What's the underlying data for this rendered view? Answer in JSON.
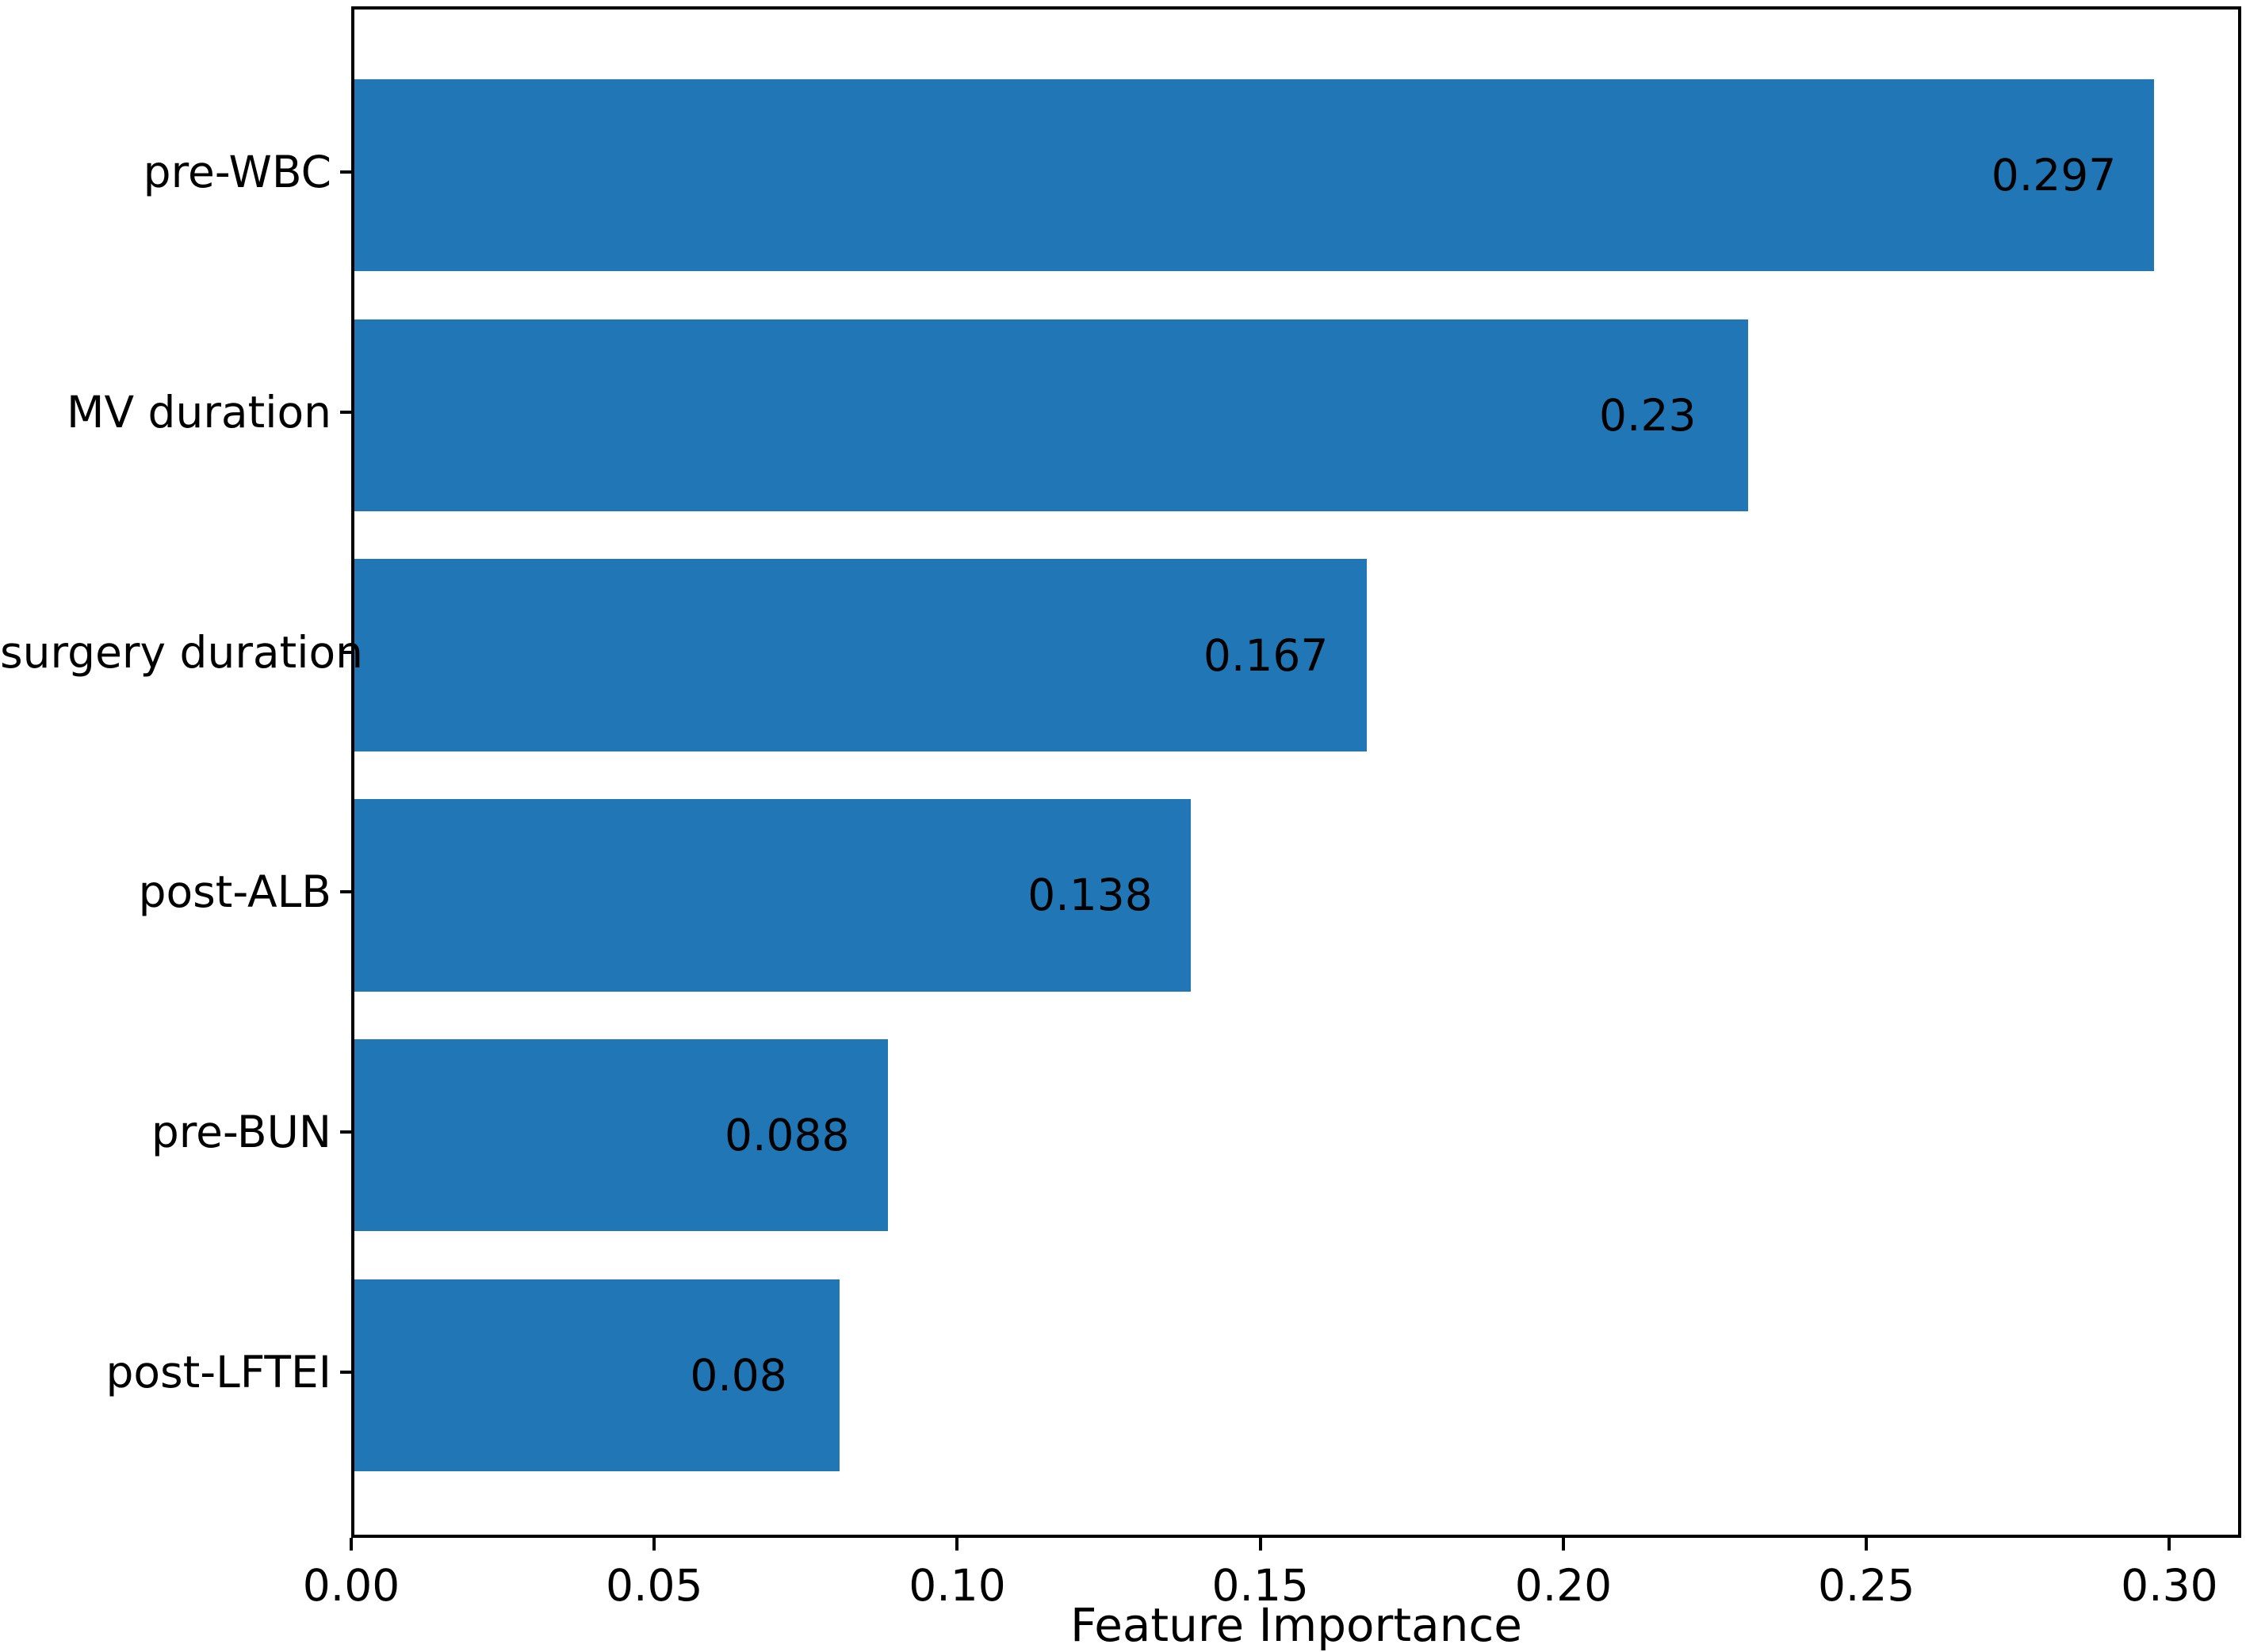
{
  "chart_data": {
    "type": "bar",
    "orientation": "horizontal",
    "title": "",
    "xlabel": "Feature Importance",
    "ylabel": "",
    "categories": [
      "pre-WBC",
      "MV duration",
      "surgery duration",
      "post-ALB",
      "pre-BUN",
      "post-LFTEI"
    ],
    "values": [
      0.297,
      0.23,
      0.167,
      0.138,
      0.088,
      0.08
    ],
    "value_labels": [
      "0.297",
      "0.23",
      "0.167",
      "0.138",
      "0.088",
      "0.08"
    ],
    "xlim": [
      0,
      0.31185
    ],
    "x_tick_values": [
      0.0,
      0.05,
      0.1,
      0.15,
      0.2,
      0.25,
      0.3
    ],
    "x_tick_labels": [
      "0.00",
      "0.05",
      "0.10",
      "0.15",
      "0.20",
      "0.25",
      "0.30"
    ],
    "grid": false,
    "legend": null,
    "bar_color": "#2177b5",
    "axis_color": "#000000",
    "text_color": "#000000"
  }
}
